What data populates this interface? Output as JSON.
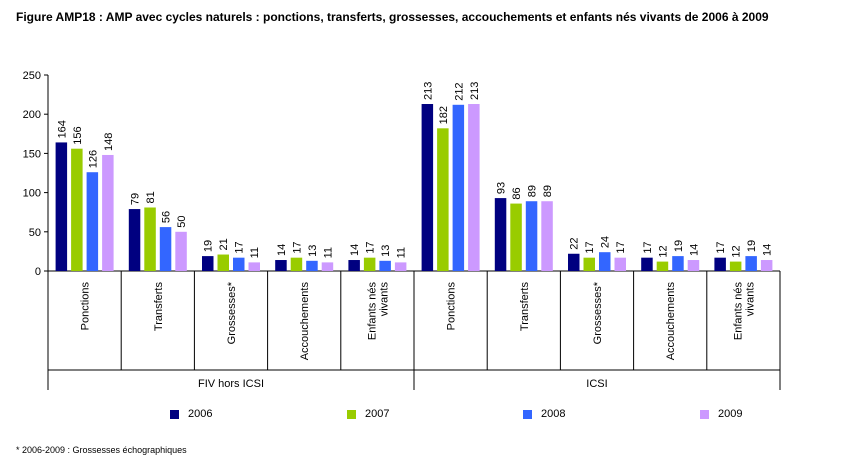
{
  "title": "Figure AMP18 : AMP avec cycles naturels : ponctions, transferts, grossesses, accouchements et enfants nés vivants de 2006 à 2009",
  "footnote": "* 2006-2009 : Grossesses échographiques",
  "colors": {
    "2006": "#000080",
    "2007": "#99cc00",
    "2008": "#3366ff",
    "2009": "#cc99ff"
  },
  "chart_data": {
    "type": "bar",
    "ylim": [
      0,
      250
    ],
    "yticks": [
      0,
      50,
      100,
      150,
      200,
      250
    ],
    "grid": false,
    "legend_position": "bottom",
    "groups": [
      {
        "label": "FIV hors ICSI",
        "categories": [
          "Ponctions",
          "Transferts",
          "Grossesses*",
          "Accouchements",
          "Enfants nés vivants"
        ]
      },
      {
        "label": "ICSI",
        "categories": [
          "Ponctions",
          "Transferts",
          "Grossesses*",
          "Accouchements",
          "Enfants nés vivants"
        ]
      }
    ],
    "series": [
      {
        "name": "2006",
        "values": [
          164,
          79,
          19,
          14,
          14,
          213,
          93,
          22,
          17,
          17
        ]
      },
      {
        "name": "2007",
        "values": [
          156,
          81,
          21,
          17,
          17,
          182,
          86,
          17,
          12,
          12
        ]
      },
      {
        "name": "2008",
        "values": [
          126,
          56,
          17,
          13,
          13,
          212,
          89,
          24,
          19,
          19
        ]
      },
      {
        "name": "2009",
        "values": [
          148,
          50,
          11,
          11,
          11,
          213,
          89,
          17,
          14,
          14
        ]
      }
    ]
  }
}
